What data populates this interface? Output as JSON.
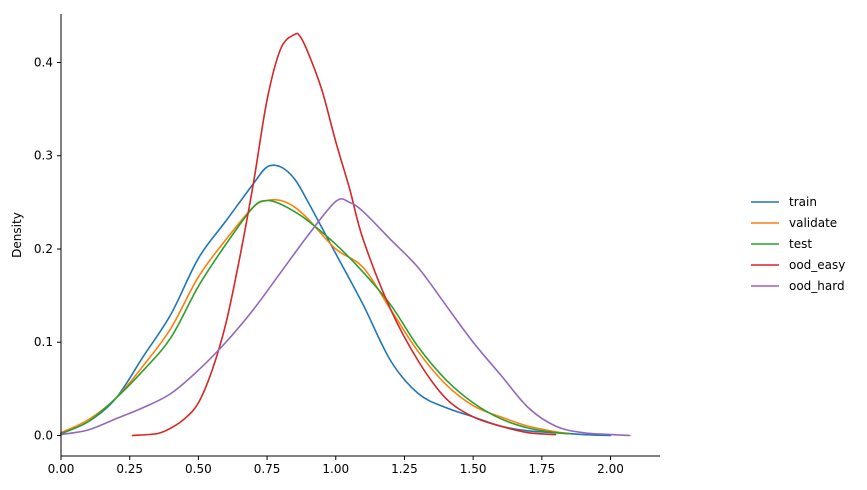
{
  "chart_data": {
    "type": "line",
    "ylabel": "Density",
    "xlim": [
      0.0,
      2.18
    ],
    "ylim": [
      -0.022,
      0.452
    ],
    "xticks": [
      0.0,
      0.25,
      0.5,
      0.75,
      1.0,
      1.25,
      1.5,
      1.75,
      2.0
    ],
    "xtick_labels": [
      "0.00",
      "0.25",
      "0.50",
      "0.75",
      "1.00",
      "1.25",
      "1.50",
      "1.75",
      "2.00"
    ],
    "yticks": [
      0.0,
      0.1,
      0.2,
      0.3,
      0.4
    ],
    "ytick_labels": [
      "0.0",
      "0.1",
      "0.2",
      "0.3",
      "0.4"
    ],
    "grid": false,
    "legend_position": "right",
    "series": [
      {
        "name": "train",
        "color": "#1f77b4",
        "x": [
          0.0,
          0.1,
          0.2,
          0.3,
          0.4,
          0.5,
          0.6,
          0.7,
          0.75,
          0.8,
          0.85,
          0.9,
          1.0,
          1.1,
          1.2,
          1.3,
          1.4,
          1.5,
          1.6,
          1.7,
          1.8,
          1.9,
          2.0
        ],
        "y": [
          0.002,
          0.015,
          0.04,
          0.085,
          0.13,
          0.19,
          0.23,
          0.27,
          0.288,
          0.288,
          0.275,
          0.25,
          0.195,
          0.14,
          0.08,
          0.045,
          0.03,
          0.02,
          0.01,
          0.005,
          0.003,
          0.001,
          0.0
        ]
      },
      {
        "name": "validate",
        "color": "#ff7f0e",
        "x": [
          0.0,
          0.1,
          0.2,
          0.3,
          0.4,
          0.5,
          0.6,
          0.7,
          0.75,
          0.8,
          0.85,
          0.9,
          1.0,
          1.1,
          1.2,
          1.3,
          1.4,
          1.5,
          1.6,
          1.7,
          1.8,
          1.85
        ],
        "y": [
          0.003,
          0.017,
          0.04,
          0.075,
          0.115,
          0.17,
          0.21,
          0.245,
          0.252,
          0.252,
          0.245,
          0.232,
          0.2,
          0.18,
          0.135,
          0.09,
          0.055,
          0.032,
          0.02,
          0.01,
          0.004,
          0.002
        ]
      },
      {
        "name": "test",
        "color": "#2ca02c",
        "x": [
          0.0,
          0.1,
          0.2,
          0.3,
          0.4,
          0.5,
          0.6,
          0.7,
          0.75,
          0.8,
          0.85,
          0.9,
          1.0,
          1.1,
          1.2,
          1.3,
          1.4,
          1.5,
          1.6,
          1.7,
          1.8,
          1.85
        ],
        "y": [
          0.002,
          0.015,
          0.04,
          0.07,
          0.105,
          0.16,
          0.205,
          0.245,
          0.252,
          0.248,
          0.24,
          0.23,
          0.205,
          0.175,
          0.14,
          0.095,
          0.06,
          0.035,
          0.018,
          0.008,
          0.003,
          0.002
        ]
      },
      {
        "name": "ood_easy",
        "color": "#d62728",
        "x": [
          0.26,
          0.35,
          0.4,
          0.45,
          0.5,
          0.55,
          0.6,
          0.65,
          0.7,
          0.75,
          0.8,
          0.85,
          0.87,
          0.9,
          0.95,
          1.0,
          1.05,
          1.1,
          1.2,
          1.3,
          1.4,
          1.5,
          1.6,
          1.7,
          1.8
        ],
        "y": [
          0.0,
          0.002,
          0.008,
          0.018,
          0.035,
          0.07,
          0.12,
          0.19,
          0.27,
          0.36,
          0.415,
          0.43,
          0.428,
          0.41,
          0.37,
          0.315,
          0.265,
          0.21,
          0.135,
          0.08,
          0.04,
          0.02,
          0.01,
          0.003,
          0.001
        ]
      },
      {
        "name": "ood_hard",
        "color": "#9467bd",
        "x": [
          0.0,
          0.1,
          0.2,
          0.3,
          0.4,
          0.5,
          0.6,
          0.7,
          0.8,
          0.9,
          1.0,
          1.05,
          1.1,
          1.2,
          1.3,
          1.4,
          1.5,
          1.6,
          1.7,
          1.8,
          1.9,
          2.0,
          2.07
        ],
        "y": [
          0.001,
          0.006,
          0.018,
          0.03,
          0.045,
          0.07,
          0.1,
          0.135,
          0.175,
          0.215,
          0.251,
          0.25,
          0.24,
          0.21,
          0.18,
          0.14,
          0.1,
          0.065,
          0.03,
          0.01,
          0.003,
          0.001,
          0.0
        ]
      }
    ]
  }
}
